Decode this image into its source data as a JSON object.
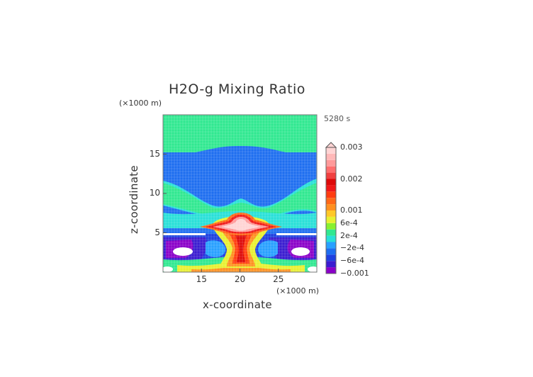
{
  "chart_data": {
    "type": "heatmap",
    "title": "H2O-g Mixing Ratio",
    "xlabel": "x-coordinate",
    "ylabel": "z-coordinate",
    "x_unit": "(×1000 m)",
    "y_unit": "(×1000 m)",
    "time_label": "5280 s",
    "xlim": [
      10,
      30
    ],
    "ylim": [
      0,
      20
    ],
    "x_ticks": [
      15,
      20,
      25
    ],
    "y_ticks": [
      5,
      10,
      15
    ],
    "grid": true,
    "colorbar": {
      "placement": "right",
      "levels": [
        -0.001,
        -0.0008,
        -0.0006,
        -0.0004,
        -0.0002,
        0,
        0.0002,
        0.0004,
        0.0006,
        0.0008,
        0.001,
        0.0012,
        0.0014,
        0.0016,
        0.0018,
        0.002,
        0.0022,
        0.0024,
        0.0026,
        0.0028,
        0.003
      ],
      "colors": [
        "#8a00c8",
        "#3a1cd0",
        "#1e40e0",
        "#1e6ef0",
        "#28a0ff",
        "#28e0d8",
        "#30e890",
        "#88f030",
        "#e8f030",
        "#ffc828",
        "#ff9020",
        "#ff6818",
        "#ff3c10",
        "#f01818",
        "#dd0a0a",
        "#f04040",
        "#ff6e6e",
        "#ff9a9a",
        "#ffb8b8",
        "#ffd4d4"
      ],
      "tick_labels": [
        {
          "value": 0.003,
          "label": "0.003"
        },
        {
          "value": 0.002,
          "label": "0.002"
        },
        {
          "value": 0.001,
          "label": "0.001"
        },
        {
          "value": 0.0006,
          "label": "6e-4"
        },
        {
          "value": 0.0002,
          "label": "2e-4"
        },
        {
          "value": -0.0002,
          "label": "−2e-4"
        },
        {
          "value": -0.0006,
          "label": "−6e-4"
        },
        {
          "value": -0.001,
          "label": "−0.001"
        }
      ]
    }
  }
}
